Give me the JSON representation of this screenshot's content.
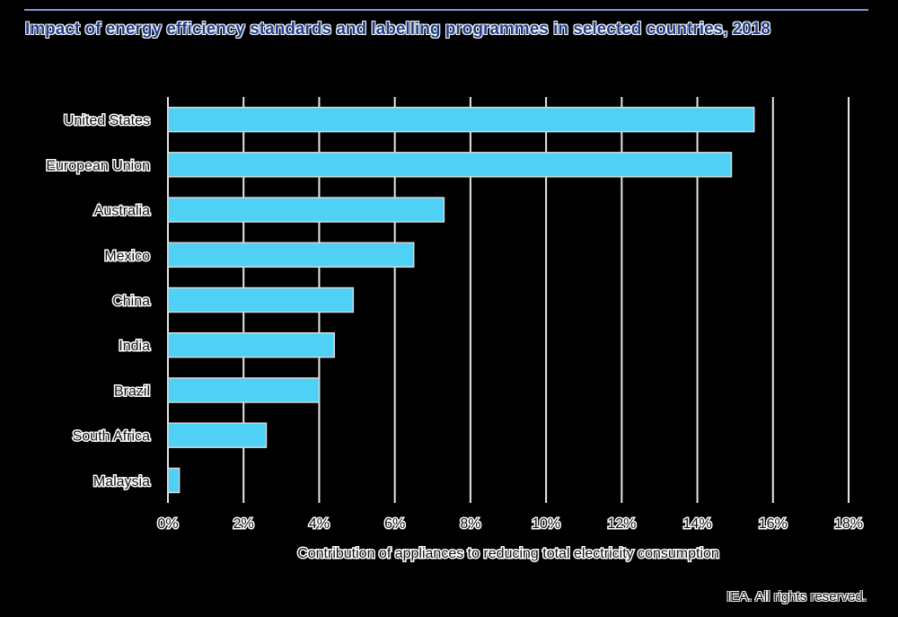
{
  "chart_data": {
    "type": "bar",
    "orientation": "horizontal",
    "title": "Impact of energy efficiency standards and labelling programmes in selected countries, 2018",
    "categories": [
      "United States",
      "European Union",
      "Australia",
      "Mexico",
      "China",
      "India",
      "Brazil",
      "South Africa",
      "Malaysia"
    ],
    "values": [
      15.5,
      14.9,
      7.3,
      6.5,
      4.9,
      4.4,
      4.0,
      2.6,
      0.3
    ],
    "unit": "%",
    "xlabel": "Contribution of appliances to reducing total  electricity consumption",
    "ylabel": "",
    "xlim": [
      0,
      18
    ],
    "xticks": [
      "0%",
      "2%",
      "4%",
      "6%",
      "8%",
      "10%",
      "12%",
      "14%",
      "16%",
      "18%"
    ],
    "grid": "vertical",
    "bar_color": "#4fd0f5"
  },
  "footer": {
    "credit": "IEA. All rights reserved."
  }
}
